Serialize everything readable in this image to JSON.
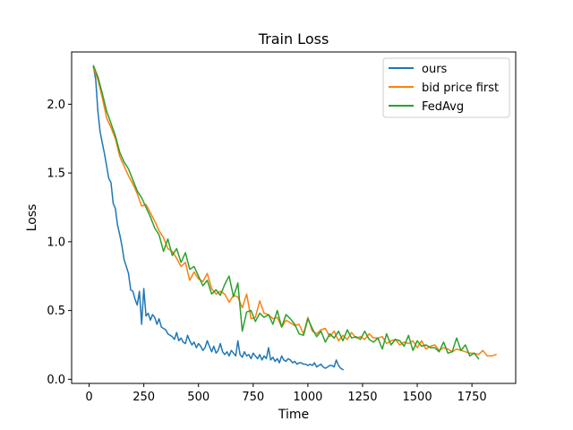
{
  "chart_data": {
    "type": "line",
    "title": "Train Loss",
    "xlabel": "Time",
    "ylabel": "Loss",
    "xlim": [
      -80,
      1950
    ],
    "ylim": [
      -0.03,
      2.38
    ],
    "xticks": [
      0,
      250,
      500,
      750,
      1000,
      1250,
      1500,
      1750
    ],
    "xtick_labels": [
      "0",
      "250",
      "500",
      "750",
      "1000",
      "1250",
      "1500",
      "1750"
    ],
    "yticks": [
      0.0,
      0.5,
      1.0,
      1.5,
      2.0
    ],
    "ytick_labels": [
      "0.0",
      "0.5",
      "1.0",
      "1.5",
      "2.0"
    ],
    "grid": false,
    "legend_position": "top-right",
    "series": [
      {
        "name": "ours",
        "color": "#1f77b4",
        "x": [
          20,
          30,
          40,
          50,
          60,
          70,
          80,
          90,
          100,
          110,
          120,
          130,
          140,
          150,
          160,
          170,
          180,
          190,
          200,
          210,
          220,
          230,
          240,
          250,
          260,
          270,
          280,
          290,
          300,
          310,
          320,
          330,
          340,
          350,
          360,
          370,
          380,
          390,
          400,
          410,
          420,
          430,
          440,
          450,
          460,
          470,
          480,
          490,
          500,
          510,
          520,
          530,
          540,
          550,
          560,
          570,
          580,
          590,
          600,
          610,
          620,
          630,
          640,
          650,
          660,
          670,
          680,
          690,
          700,
          710,
          720,
          730,
          740,
          750,
          760,
          770,
          780,
          790,
          800,
          810,
          820,
          830,
          840,
          850,
          860,
          870,
          880,
          890,
          900,
          910,
          920,
          930,
          940,
          950,
          960,
          970,
          980,
          990,
          1000,
          1010,
          1020,
          1030,
          1040,
          1050,
          1060,
          1070,
          1080,
          1090,
          1100,
          1110,
          1120,
          1130,
          1140,
          1150,
          1160
        ],
        "y": [
          2.27,
          2.18,
          1.95,
          1.8,
          1.72,
          1.64,
          1.55,
          1.46,
          1.43,
          1.28,
          1.24,
          1.12,
          1.05,
          0.97,
          0.87,
          0.82,
          0.77,
          0.65,
          0.64,
          0.58,
          0.54,
          0.64,
          0.4,
          0.66,
          0.46,
          0.48,
          0.43,
          0.47,
          0.45,
          0.4,
          0.44,
          0.38,
          0.37,
          0.36,
          0.33,
          0.32,
          0.31,
          0.29,
          0.34,
          0.28,
          0.3,
          0.27,
          0.26,
          0.32,
          0.28,
          0.25,
          0.27,
          0.23,
          0.26,
          0.24,
          0.21,
          0.23,
          0.28,
          0.24,
          0.2,
          0.24,
          0.19,
          0.21,
          0.26,
          0.2,
          0.18,
          0.2,
          0.17,
          0.21,
          0.19,
          0.17,
          0.28,
          0.18,
          0.16,
          0.2,
          0.17,
          0.18,
          0.15,
          0.19,
          0.17,
          0.15,
          0.18,
          0.14,
          0.17,
          0.15,
          0.23,
          0.14,
          0.16,
          0.13,
          0.15,
          0.12,
          0.17,
          0.14,
          0.13,
          0.15,
          0.14,
          0.12,
          0.13,
          0.11,
          0.12,
          0.12,
          0.11,
          0.11,
          0.1,
          0.11,
          0.1,
          0.12,
          0.09,
          0.1,
          0.11,
          0.09,
          0.08,
          0.09,
          0.1,
          0.1,
          0.09,
          0.14,
          0.1,
          0.08,
          0.07
        ]
      },
      {
        "name": "bid price first",
        "color": "#ff7f0e",
        "x": [
          20,
          40,
          60,
          80,
          100,
          120,
          140,
          160,
          180,
          200,
          220,
          240,
          260,
          280,
          300,
          320,
          340,
          360,
          380,
          400,
          420,
          440,
          460,
          480,
          500,
          520,
          540,
          560,
          580,
          600,
          620,
          640,
          660,
          680,
          700,
          720,
          740,
          760,
          780,
          800,
          820,
          840,
          860,
          880,
          900,
          920,
          940,
          960,
          980,
          1000,
          1020,
          1040,
          1060,
          1080,
          1100,
          1120,
          1140,
          1160,
          1180,
          1200,
          1220,
          1240,
          1260,
          1280,
          1300,
          1320,
          1340,
          1360,
          1380,
          1400,
          1420,
          1440,
          1460,
          1480,
          1500,
          1520,
          1540,
          1560,
          1580,
          1600,
          1620,
          1640,
          1660,
          1680,
          1700,
          1720,
          1740,
          1760,
          1780,
          1800,
          1820,
          1840,
          1860
        ],
        "y": [
          2.26,
          2.18,
          2.05,
          1.9,
          1.83,
          1.75,
          1.62,
          1.55,
          1.48,
          1.42,
          1.35,
          1.26,
          1.27,
          1.21,
          1.15,
          1.08,
          1.03,
          0.95,
          0.93,
          0.88,
          0.82,
          0.85,
          0.72,
          0.78,
          0.73,
          0.71,
          0.77,
          0.66,
          0.62,
          0.64,
          0.62,
          0.56,
          0.61,
          0.6,
          0.52,
          0.62,
          0.44,
          0.45,
          0.57,
          0.48,
          0.47,
          0.44,
          0.45,
          0.38,
          0.43,
          0.41,
          0.39,
          0.4,
          0.33,
          0.45,
          0.35,
          0.33,
          0.36,
          0.37,
          0.31,
          0.35,
          0.28,
          0.32,
          0.29,
          0.34,
          0.3,
          0.31,
          0.29,
          0.33,
          0.3,
          0.3,
          0.31,
          0.26,
          0.28,
          0.29,
          0.25,
          0.27,
          0.26,
          0.28,
          0.23,
          0.28,
          0.22,
          0.24,
          0.25,
          0.21,
          0.23,
          0.22,
          0.2,
          0.22,
          0.21,
          0.2,
          0.19,
          0.19,
          0.18,
          0.21,
          0.17,
          0.17,
          0.18
        ]
      },
      {
        "name": "FedAvg",
        "color": "#2ca02c",
        "x": [
          20,
          40,
          60,
          80,
          100,
          120,
          140,
          160,
          180,
          200,
          220,
          240,
          260,
          280,
          300,
          320,
          340,
          360,
          380,
          400,
          420,
          440,
          460,
          480,
          500,
          520,
          540,
          560,
          580,
          600,
          620,
          640,
          660,
          680,
          700,
          720,
          740,
          760,
          780,
          800,
          820,
          840,
          860,
          880,
          900,
          920,
          940,
          960,
          980,
          1000,
          1020,
          1040,
          1060,
          1080,
          1100,
          1120,
          1140,
          1160,
          1180,
          1200,
          1220,
          1240,
          1260,
          1280,
          1300,
          1320,
          1340,
          1360,
          1380,
          1400,
          1420,
          1440,
          1460,
          1480,
          1500,
          1520,
          1540,
          1560,
          1580,
          1600,
          1620,
          1640,
          1660,
          1680,
          1700,
          1720,
          1740,
          1760,
          1780
        ],
        "y": [
          2.28,
          2.2,
          2.08,
          1.95,
          1.86,
          1.77,
          1.65,
          1.58,
          1.53,
          1.45,
          1.37,
          1.32,
          1.25,
          1.18,
          1.1,
          1.05,
          0.93,
          1.02,
          0.9,
          0.95,
          0.85,
          0.92,
          0.8,
          0.82,
          0.75,
          0.68,
          0.72,
          0.62,
          0.65,
          0.61,
          0.69,
          0.75,
          0.6,
          0.7,
          0.35,
          0.49,
          0.5,
          0.42,
          0.48,
          0.45,
          0.47,
          0.4,
          0.5,
          0.38,
          0.47,
          0.44,
          0.4,
          0.33,
          0.32,
          0.44,
          0.37,
          0.31,
          0.35,
          0.27,
          0.33,
          0.3,
          0.35,
          0.28,
          0.36,
          0.3,
          0.31,
          0.29,
          0.35,
          0.29,
          0.27,
          0.3,
          0.22,
          0.33,
          0.25,
          0.29,
          0.28,
          0.24,
          0.32,
          0.21,
          0.28,
          0.24,
          0.25,
          0.23,
          0.23,
          0.2,
          0.27,
          0.19,
          0.2,
          0.3,
          0.21,
          0.25,
          0.17,
          0.19,
          0.15
        ]
      }
    ]
  }
}
